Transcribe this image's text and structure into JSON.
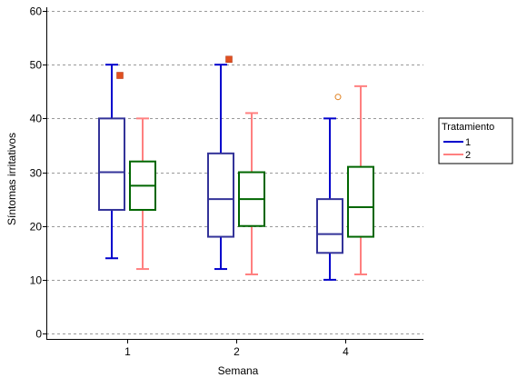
{
  "chart_data": {
    "type": "boxplot",
    "xlabel": "Semana",
    "ylabel": "Síntomas irritativos",
    "categories": [
      "1",
      "2",
      "4"
    ],
    "ylim": [
      -1,
      60
    ],
    "yticks": [
      0,
      10,
      20,
      30,
      40,
      50,
      60
    ],
    "grid": true,
    "grid_style": "dashed-horizontal",
    "legend": {
      "title": "Tratamiento",
      "position": "right",
      "entries": [
        "1",
        "2"
      ]
    },
    "series": [
      {
        "name": "1",
        "color": "#0000cc",
        "box_color": "#333399",
        "boxes": [
          {
            "category": "1",
            "whisker_low": 14,
            "q1": 23,
            "median": 30,
            "q3": 40,
            "whisker_high": 50,
            "outliers": [
              {
                "value": 48,
                "marker": "square",
                "color": "#e05020"
              }
            ]
          },
          {
            "category": "2",
            "whisker_low": 12,
            "q1": 18,
            "median": 25,
            "q3": 33.5,
            "whisker_high": 50,
            "outliers": [
              {
                "value": 51,
                "marker": "square",
                "color": "#e05020"
              }
            ]
          },
          {
            "category": "4",
            "whisker_low": 10,
            "q1": 15,
            "median": 18.5,
            "q3": 25,
            "whisker_high": 40,
            "outliers": [
              {
                "value": 44,
                "marker": "circle",
                "color": "#e08020"
              }
            ]
          }
        ]
      },
      {
        "name": "2",
        "color": "#ff8080",
        "box_color": "#006600",
        "boxes": [
          {
            "category": "1",
            "whisker_low": 12,
            "q1": 23,
            "median": 27.5,
            "q3": 32,
            "whisker_high": 40,
            "outliers": []
          },
          {
            "category": "2",
            "whisker_low": 11,
            "q1": 20,
            "median": 25,
            "q3": 30,
            "whisker_high": 41,
            "outliers": []
          },
          {
            "category": "4",
            "whisker_low": 11,
            "q1": 18,
            "median": 23.5,
            "q3": 31,
            "whisker_high": 46,
            "outliers": []
          }
        ]
      }
    ]
  }
}
